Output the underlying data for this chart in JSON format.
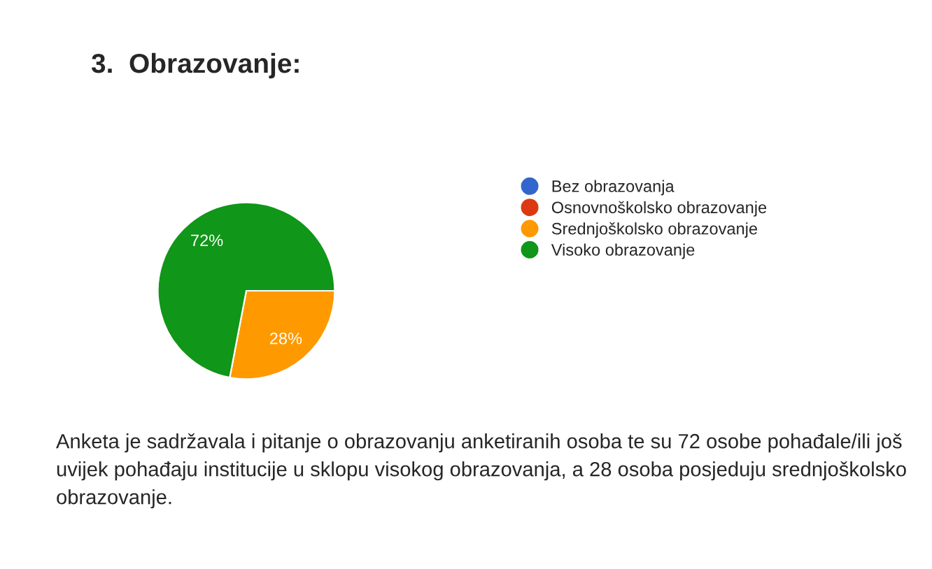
{
  "chart_data": {
    "type": "pie",
    "title": "3.  Obrazovanje:",
    "categories": [
      "Bez obrazovanja",
      "Osnovnoškolsko obrazovanje",
      "Srednjoškolsko obrazovanje",
      "Visoko obrazovanje"
    ],
    "values": [
      0,
      0,
      28,
      72
    ],
    "colors": [
      "#3366cc",
      "#dc3912",
      "#ff9900",
      "#109618"
    ],
    "value_labels": [
      null,
      null,
      "28%",
      "72%"
    ],
    "legend": "right",
    "annotations": [
      "Anketa je sadržavala i pitanje o obrazovanju anketiranih osoba te su 72 osobe pohađale/ili još uvijek pohađaju institucije u sklopu visokog obrazovanja, a 28 osoba posjeduju srednjoškolsko obrazovanje."
    ]
  }
}
